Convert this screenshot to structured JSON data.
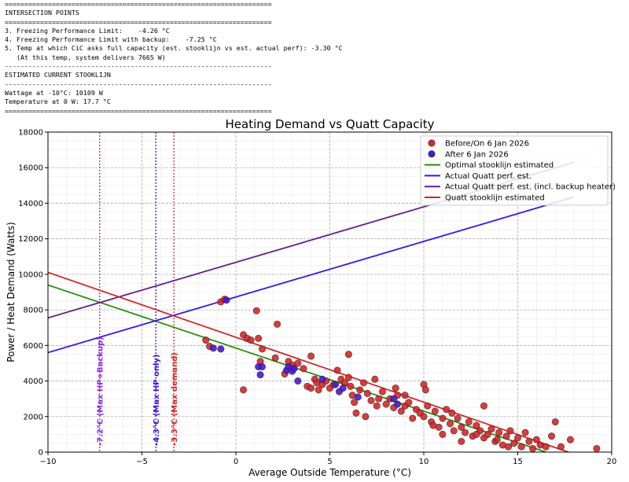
{
  "console": {
    "lines": [
      "====================================================================",
      "INTERSECTION POINTS",
      "====================================================================",
      "3. Freezing Performance Limit:    -4.26 °C",
      "4. Freezing Performance Limit with backup:    -7.25 °C",
      "5. Temp at which CiC asks full capacity (est. stooklijn vs est. actual perf): -3.30 °C",
      "   (At this temp, system delivers 7665 W)",
      "--------------------------------------------------------------------",
      "ESTIMATED CURRENT STOOKLIJN",
      "--------------------------------------------------------------------",
      "Wattage at -10°C: 10109 W",
      "Temperature at 0 W: 17.7 °C",
      "===================================================================="
    ]
  },
  "chart_data": {
    "type": "scatter",
    "title": "Heating Demand vs Quatt Capacity",
    "xlabel": "Average Outside Temperature (°C)",
    "ylabel": "Power / Heat Demand (Watts)",
    "xlim": [
      -10,
      20
    ],
    "ylim": [
      0,
      18000
    ],
    "xticks": [
      -10,
      -5,
      0,
      5,
      10,
      15,
      20
    ],
    "yticks": [
      0,
      2000,
      4000,
      6000,
      8000,
      10000,
      12000,
      14000,
      16000,
      18000
    ],
    "grid": true,
    "legend_position": "top-right",
    "scatter_series": [
      {
        "name": "Before/On 6 Jan 2026",
        "color": "#d62728",
        "points": [
          [
            -0.8,
            8450
          ],
          [
            -0.6,
            8600
          ],
          [
            1.1,
            7950
          ],
          [
            2.2,
            7200
          ],
          [
            -1.6,
            6300
          ],
          [
            -1.4,
            5950
          ],
          [
            0.4,
            6600
          ],
          [
            0.6,
            6400
          ],
          [
            0.8,
            6300
          ],
          [
            1.2,
            6400
          ],
          [
            1.4,
            5800
          ],
          [
            2.1,
            5300
          ],
          [
            0.4,
            3500
          ],
          [
            1.3,
            5100
          ],
          [
            2.6,
            4400
          ],
          [
            2.8,
            5100
          ],
          [
            3.0,
            4900
          ],
          [
            3.3,
            5000
          ],
          [
            3.6,
            4700
          ],
          [
            3.8,
            3700
          ],
          [
            4.0,
            5400
          ],
          [
            4.0,
            3600
          ],
          [
            4.2,
            4100
          ],
          [
            4.3,
            3900
          ],
          [
            4.4,
            3500
          ],
          [
            4.6,
            3800
          ],
          [
            4.8,
            4000
          ],
          [
            5.0,
            3600
          ],
          [
            5.2,
            3800
          ],
          [
            5.4,
            4600
          ],
          [
            5.6,
            4100
          ],
          [
            5.8,
            3900
          ],
          [
            6.0,
            4200
          ],
          [
            6.1,
            3700
          ],
          [
            6.0,
            5500
          ],
          [
            6.2,
            3200
          ],
          [
            6.3,
            2800
          ],
          [
            6.4,
            2200
          ],
          [
            6.6,
            3500
          ],
          [
            6.8,
            3900
          ],
          [
            7.0,
            3300
          ],
          [
            7.2,
            2900
          ],
          [
            7.4,
            4100
          ],
          [
            7.6,
            3000
          ],
          [
            7.8,
            3400
          ],
          [
            8.0,
            2700
          ],
          [
            8.2,
            3000
          ],
          [
            8.4,
            2500
          ],
          [
            8.6,
            3200
          ],
          [
            8.8,
            2300
          ],
          [
            9.0,
            2600
          ],
          [
            9.2,
            2800
          ],
          [
            9.4,
            1900
          ],
          [
            9.6,
            2400
          ],
          [
            9.8,
            2200
          ],
          [
            10.0,
            3800
          ],
          [
            10.1,
            3500
          ],
          [
            10.0,
            2000
          ],
          [
            10.2,
            2600
          ],
          [
            10.4,
            1700
          ],
          [
            10.6,
            2300
          ],
          [
            10.8,
            1400
          ],
          [
            11.0,
            1900
          ],
          [
            11.2,
            2400
          ],
          [
            11.4,
            1600
          ],
          [
            11.6,
            1200
          ],
          [
            11.8,
            1900
          ],
          [
            12.0,
            1400
          ],
          [
            12.2,
            1100
          ],
          [
            12.4,
            1700
          ],
          [
            12.6,
            900
          ],
          [
            12.8,
            1500
          ],
          [
            13.0,
            1200
          ],
          [
            13.2,
            2600
          ],
          [
            13.2,
            800
          ],
          [
            13.4,
            1000
          ],
          [
            13.6,
            1300
          ],
          [
            13.8,
            600
          ],
          [
            14.0,
            1100
          ],
          [
            14.2,
            400
          ],
          [
            14.4,
            900
          ],
          [
            14.6,
            1200
          ],
          [
            14.8,
            500
          ],
          [
            15.0,
            800
          ],
          [
            15.2,
            300
          ],
          [
            15.4,
            1100
          ],
          [
            15.6,
            600
          ],
          [
            15.8,
            200
          ],
          [
            16.0,
            700
          ],
          [
            16.2,
            400
          ],
          [
            16.5,
            300
          ],
          [
            16.8,
            900
          ],
          [
            17.0,
            1700
          ],
          [
            17.3,
            300
          ],
          [
            17.8,
            700
          ],
          [
            19.2,
            200
          ],
          [
            9.0,
            3200
          ],
          [
            8.5,
            3600
          ],
          [
            11.5,
            2200
          ],
          [
            12.8,
            1000
          ],
          [
            7.5,
            2600
          ],
          [
            10.5,
            1500
          ],
          [
            13.9,
            700
          ],
          [
            14.5,
            300
          ],
          [
            6.9,
            2000
          ],
          [
            11.0,
            1000
          ],
          [
            12.0,
            600
          ]
        ]
      },
      {
        "name": "After 6 Jan 2026",
        "color": "#4b16d6",
        "points": [
          [
            -0.5,
            8550
          ],
          [
            -1.2,
            5850
          ],
          [
            -0.8,
            5800
          ],
          [
            1.2,
            4800
          ],
          [
            1.3,
            4350
          ],
          [
            1.4,
            4800
          ],
          [
            2.7,
            4600
          ],
          [
            2.8,
            4800
          ],
          [
            3.0,
            4550
          ],
          [
            3.1,
            4700
          ],
          [
            3.3,
            4000
          ],
          [
            5.5,
            3400
          ],
          [
            5.7,
            3600
          ],
          [
            6.5,
            3100
          ],
          [
            8.4,
            3000
          ],
          [
            8.6,
            2700
          ],
          [
            4.6,
            4100
          ],
          [
            5.3,
            3800
          ]
        ]
      }
    ],
    "line_series": [
      {
        "name": "Optimal stooklijn estimated",
        "color": "#2e8b0e",
        "x": [
          -10,
          16.5
        ],
        "y": [
          9400,
          0
        ]
      },
      {
        "name": "Actual Quatt perf. est.",
        "color": "#3c14e6",
        "x": [
          -10,
          18
        ],
        "y": [
          5600,
          14350
        ]
      },
      {
        "name": "Actual Quatt perf. est. (incl. backup heater)",
        "color": "#6a1a8a",
        "x": [
          -10,
          18
        ],
        "y": [
          7550,
          16300
        ]
      },
      {
        "name": "Quatt stooklijn estimated",
        "color": "#d62728",
        "x": [
          -10,
          17.7
        ],
        "y": [
          10109,
          0
        ]
      }
    ],
    "vlines": [
      {
        "x": -7.25,
        "color": "#8a2be2",
        "label": "-7.2°C (Max HP+Backup)"
      },
      {
        "x": -4.26,
        "color": "#3c14e6",
        "label": "-4.3°C (Max HP only)"
      },
      {
        "x": -3.3,
        "color": "#d62728",
        "label": "-3.3°C (Max demand)"
      }
    ],
    "legend": [
      {
        "label": "Before/On 6 Jan 2026",
        "kind": "marker",
        "color": "#d62728"
      },
      {
        "label": "After 6 Jan 2026",
        "kind": "marker",
        "color": "#4b16d6"
      },
      {
        "label": "Optimal stooklijn estimated",
        "kind": "line",
        "color": "#2e8b0e"
      },
      {
        "label": "Actual Quatt perf. est.",
        "kind": "line",
        "color": "#3c14e6"
      },
      {
        "label": "Actual Quatt perf. est. (incl. backup heater)",
        "kind": "line",
        "color": "#6a1a8a"
      },
      {
        "label": "Quatt stooklijn estimated",
        "kind": "line",
        "color": "#d62728"
      }
    ]
  }
}
